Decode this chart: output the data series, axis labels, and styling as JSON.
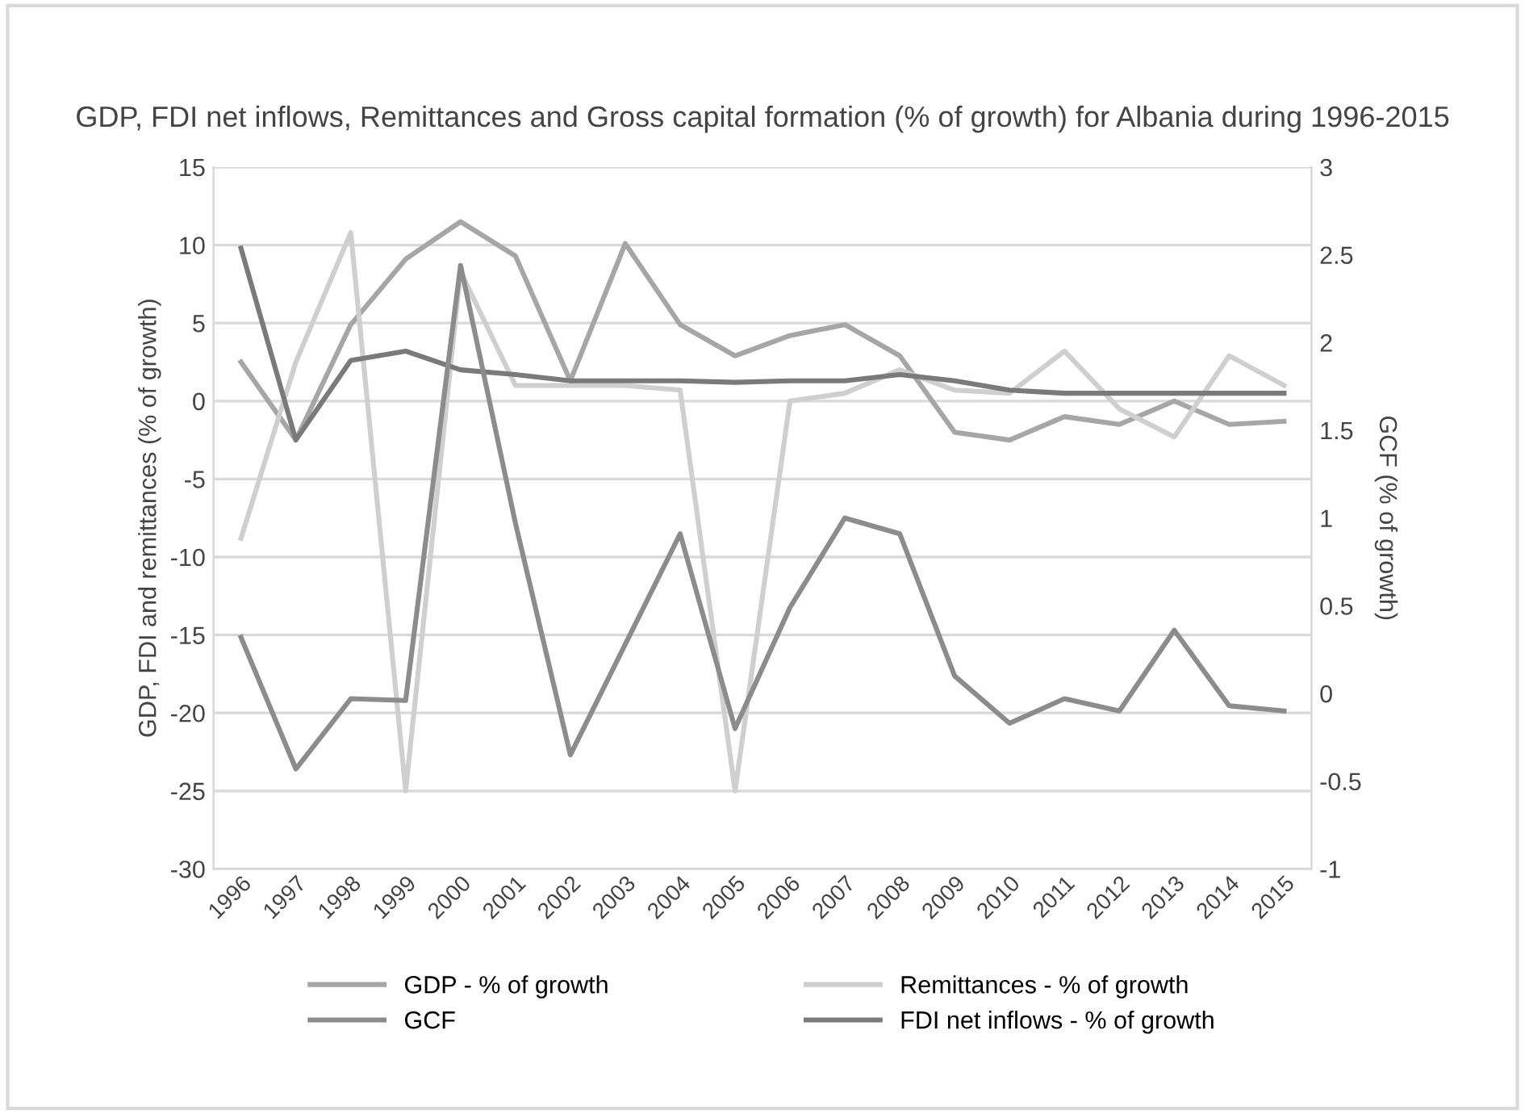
{
  "chart_data": {
    "type": "line",
    "title": "GDP, FDI net inflows, Remittances and Gross capital formation (% of growth) for Albania during 1996-2015",
    "ylabel": "GDP, FDI and remittances (% of growth)",
    "y2label": "GCF (% of growth)",
    "categories": [
      "1996",
      "1997",
      "1998",
      "1999",
      "2000",
      "2001",
      "2002",
      "2003",
      "2004",
      "2005",
      "2006",
      "2007",
      "2008",
      "2009",
      "2010",
      "2011",
      "2012",
      "2013",
      "2014",
      "2015"
    ],
    "series": [
      {
        "name": "GDP - % of growth",
        "color": "#a6a6a6",
        "values": [
          2.5,
          -2.5,
          4.9,
          9.1,
          11.5,
          9.3,
          1.3,
          10.1,
          4.9,
          2.9,
          4.2,
          4.9,
          2.9,
          -2,
          -2.5,
          -1,
          -1.5,
          0,
          -1.5,
          -1.3
        ]
      },
      {
        "name": "GCF",
        "color": "#8c8c8c",
        "axis": "y2",
        "values": [
          0.32,
          -0.43,
          -0.03,
          -0.04,
          2.44,
          0.97,
          -0.35,
          0.28,
          0.91,
          -0.2,
          0.49,
          1.0,
          0.91,
          0.1,
          -0.17,
          -0.03,
          -0.1,
          0.36,
          -0.07,
          -0.1
        ]
      },
      {
        "name": "Remittances - % of growth",
        "color": "#cfcfcf",
        "values": [
          -8.8,
          2.5,
          10.8,
          -25,
          8.3,
          1,
          1,
          1,
          0.7,
          -25,
          0,
          0.5,
          2,
          0.7,
          0.5,
          3.2,
          -0.5,
          -2.3,
          2.9,
          1
        ]
      },
      {
        "name": "FDI net inflows - % of growth",
        "color": "#7a7a7a",
        "values": [
          9.8,
          -2.5,
          2.6,
          3.2,
          2,
          1.7,
          1.3,
          1.3,
          1.3,
          1.2,
          1.3,
          1.3,
          1.7,
          1.3,
          0.7,
          0.5,
          0.5,
          0.5,
          0.5,
          0.5
        ]
      }
    ],
    "ylim": [
      -30,
      15
    ],
    "yticks": [
      -30,
      -25,
      -20,
      -15,
      -10,
      -5,
      0,
      5,
      10,
      15
    ],
    "y2lim": [
      -1,
      3
    ],
    "y2ticks": [
      -1,
      -0.5,
      0,
      0.5,
      1,
      1.5,
      2,
      2.5,
      3
    ],
    "grid": "y",
    "legend": "bottom",
    "marker": "none",
    "line_style": "solid"
  }
}
